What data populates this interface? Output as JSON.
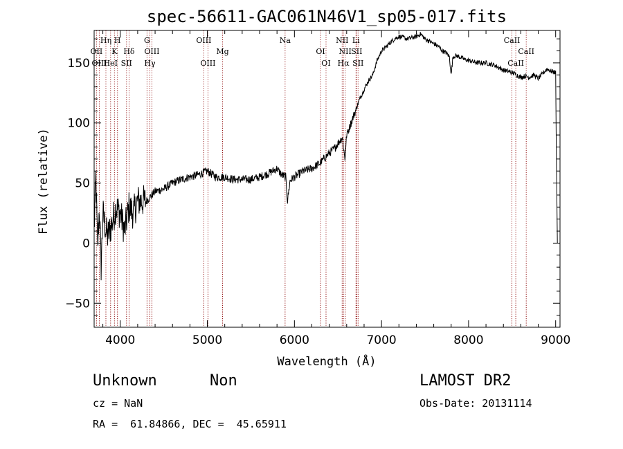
{
  "chart_data": {
    "type": "line",
    "title": "spec-56611-GAC061N46V1_sp05-017.fits",
    "xlabel": "Wavelength (Å)",
    "ylabel": "Flux (relative)",
    "xlim": [
      3700,
      9050
    ],
    "ylim": [
      -70,
      177
    ],
    "x_ticks": [
      4000,
      5000,
      6000,
      7000,
      8000,
      9000
    ],
    "y_ticks": [
      -50,
      0,
      50,
      100,
      150
    ],
    "series": [
      {
        "name": "spectrum",
        "x": [
          3700,
          3720,
          3740,
          3760,
          3780,
          3800,
          3850,
          3900,
          3950,
          4000,
          4050,
          4100,
          4150,
          4200,
          4300,
          4400,
          4500,
          4600,
          4700,
          4800,
          4900,
          5000,
          5100,
          5200,
          5300,
          5400,
          5500,
          5600,
          5700,
          5800,
          5850,
          5900,
          5920,
          5950,
          6000,
          6100,
          6200,
          6300,
          6400,
          6450,
          6500,
          6550,
          6580,
          6600,
          6650,
          6700,
          6750,
          6800,
          6850,
          6900,
          6950,
          7000,
          7050,
          7100,
          7150,
          7200,
          7300,
          7400,
          7450,
          7500,
          7550,
          7600,
          7650,
          7700,
          7750,
          7780,
          7800,
          7820,
          7850,
          7900,
          7950,
          8000,
          8100,
          8200,
          8300,
          8400,
          8450,
          8500,
          8550,
          8600,
          8650,
          8700,
          8750,
          8800,
          8850,
          8900,
          8950,
          9000,
          9010,
          9020
        ],
        "y": [
          10,
          55,
          -5,
          30,
          -20,
          25,
          5,
          15,
          30,
          25,
          10,
          30,
          25,
          35,
          35,
          43,
          45,
          50,
          53,
          55,
          57,
          60,
          55,
          55,
          53,
          53,
          53,
          55,
          58,
          62,
          57,
          55,
          35,
          52,
          55,
          60,
          62,
          67,
          75,
          78,
          83,
          88,
          70,
          90,
          100,
          110,
          120,
          128,
          135,
          140,
          152,
          160,
          163,
          167,
          170,
          172,
          170,
          172,
          174,
          170,
          168,
          166,
          164,
          160,
          158,
          155,
          140,
          155,
          156,
          155,
          153,
          152,
          150,
          150,
          148,
          144,
          143,
          142,
          140,
          138,
          139,
          138,
          140,
          137,
          141,
          145,
          143,
          142,
          60,
          0
        ]
      }
    ],
    "line_markers": [
      {
        "label": "Hη",
        "x": 3835,
        "row": 1
      },
      {
        "label": "H",
        "x": 3968,
        "row": 1
      },
      {
        "label": "K",
        "x": 3933,
        "row": 2
      },
      {
        "label": "G",
        "x": 4307,
        "row": 1
      },
      {
        "label": "OII",
        "x": 3727,
        "row": 2
      },
      {
        "label": "Hδ",
        "x": 4101,
        "row": 2
      },
      {
        "label": "OIII",
        "x": 4363,
        "row": 2
      },
      {
        "label": "OIII",
        "x": 4959,
        "row": 1
      },
      {
        "label": "Mg",
        "x": 5175,
        "row": 2
      },
      {
        "label": "Na",
        "x": 5893,
        "row": 1
      },
      {
        "label": "OI",
        "x": 6300,
        "row": 2
      },
      {
        "label": "NII",
        "x": 6548,
        "row": 1
      },
      {
        "label": "Li",
        "x": 6707,
        "row": 1
      },
      {
        "label": "NII",
        "x": 6583,
        "row": 2
      },
      {
        "label": "SII",
        "x": 6716,
        "row": 2
      },
      {
        "label": "CaII",
        "x": 8498,
        "row": 1
      },
      {
        "label": "CaII",
        "x": 8662,
        "row": 2
      },
      {
        "label": "OIII",
        "x": 3760,
        "row": 3
      },
      {
        "label": "HeI",
        "x": 3889,
        "row": 3
      },
      {
        "label": "SII",
        "x": 4072,
        "row": 3
      },
      {
        "label": "Hγ",
        "x": 4340,
        "row": 3
      },
      {
        "label": "OIII",
        "x": 5007,
        "row": 3
      },
      {
        "label": "OI",
        "x": 6363,
        "row": 3
      },
      {
        "label": "Hα",
        "x": 6563,
        "row": 3
      },
      {
        "label": "SII",
        "x": 6731,
        "row": 3
      },
      {
        "label": "CaII",
        "x": 8542,
        "row": 3
      }
    ]
  },
  "info": {
    "class_label": "Unknown",
    "subclass_label": "Non",
    "survey_label": "LAMOST DR2",
    "cz_label": "cz = NaN",
    "obs_date_label": "Obs-Date: 20131114",
    "coords_label": "RA =  61.84866, DEC =  45.65911"
  }
}
